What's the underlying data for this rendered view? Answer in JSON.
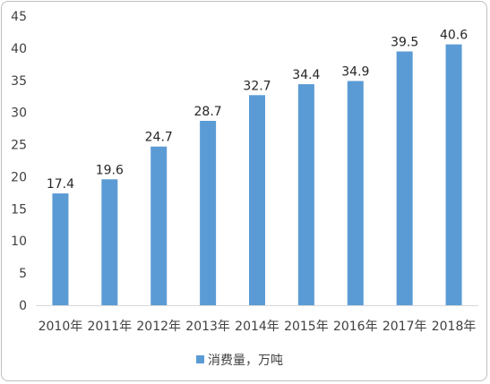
{
  "chart_data": {
    "type": "bar",
    "categories": [
      "2010年",
      "2011年",
      "2012年",
      "2013年",
      "2014年",
      "2015年",
      "2016年",
      "2017年",
      "2018年"
    ],
    "series": [
      {
        "name": "消费量，万吨",
        "values": [
          17.4,
          19.6,
          24.7,
          28.7,
          32.7,
          34.4,
          34.9,
          39.5,
          40.6
        ]
      }
    ],
    "ylim": [
      0,
      45
    ],
    "yticks": [
      0,
      5,
      10,
      15,
      20,
      25,
      30,
      35,
      40,
      45
    ],
    "grid": false,
    "legend_position": "bottom",
    "bar_color": "#5b9bd5",
    "data_labels": true
  }
}
